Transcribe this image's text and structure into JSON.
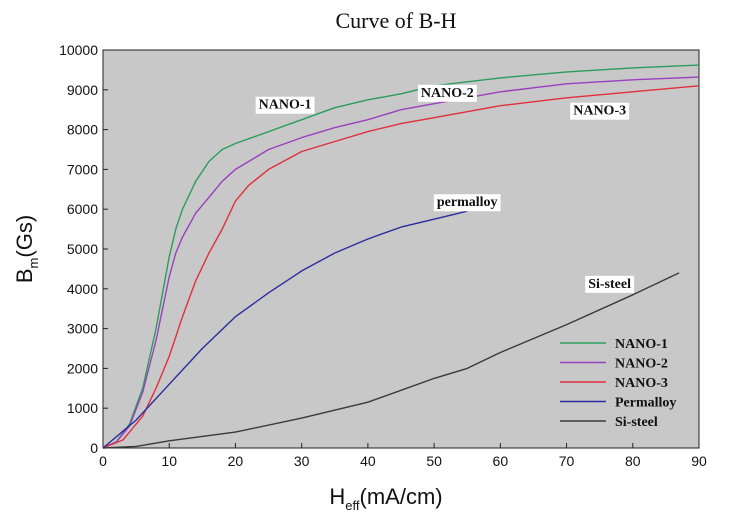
{
  "chart_data": {
    "type": "line",
    "title": "Curve of B-H",
    "xlabel": {
      "main": "H",
      "sub": "eff",
      "rest": "(mA/cm)"
    },
    "ylabel": {
      "main": "B",
      "sub": "m",
      "rest": "(Gs)"
    },
    "xlim": [
      0,
      90
    ],
    "ylim": [
      0,
      10000
    ],
    "xticks": [
      0,
      10,
      20,
      30,
      40,
      50,
      60,
      70,
      80,
      90
    ],
    "yticks": [
      0,
      1000,
      2000,
      3000,
      4000,
      5000,
      6000,
      7000,
      8000,
      9000,
      10000
    ],
    "plot_background": "#c8c8c8",
    "legend_position": "bottom-right",
    "series": [
      {
        "name": "NANO-1",
        "color": "#2a9d5c",
        "points": [
          [
            0,
            0
          ],
          [
            2,
            150
          ],
          [
            4,
            600
          ],
          [
            6,
            1500
          ],
          [
            8,
            3000
          ],
          [
            10,
            4800
          ],
          [
            11,
            5500
          ],
          [
            12,
            6000
          ],
          [
            14,
            6700
          ],
          [
            16,
            7200
          ],
          [
            18,
            7500
          ],
          [
            20,
            7650
          ],
          [
            25,
            7950
          ],
          [
            30,
            8250
          ],
          [
            35,
            8550
          ],
          [
            40,
            8750
          ],
          [
            45,
            8900
          ],
          [
            50,
            9100
          ],
          [
            55,
            9200
          ],
          [
            60,
            9300
          ],
          [
            70,
            9450
          ],
          [
            80,
            9550
          ],
          [
            90,
            9620
          ]
        ]
      },
      {
        "name": "NANO-2",
        "color": "#9b3fbf",
        "points": [
          [
            0,
            0
          ],
          [
            2,
            150
          ],
          [
            4,
            550
          ],
          [
            6,
            1400
          ],
          [
            8,
            2700
          ],
          [
            10,
            4300
          ],
          [
            11,
            4900
          ],
          [
            12,
            5300
          ],
          [
            14,
            5900
          ],
          [
            16,
            6300
          ],
          [
            18,
            6700
          ],
          [
            20,
            7000
          ],
          [
            25,
            7500
          ],
          [
            30,
            7800
          ],
          [
            35,
            8050
          ],
          [
            40,
            8250
          ],
          [
            45,
            8500
          ],
          [
            50,
            8650
          ],
          [
            55,
            8800
          ],
          [
            60,
            8950
          ],
          [
            70,
            9150
          ],
          [
            80,
            9250
          ],
          [
            90,
            9320
          ]
        ]
      },
      {
        "name": "NANO-3",
        "color": "#e0303a",
        "points": [
          [
            0,
            0
          ],
          [
            3,
            200
          ],
          [
            6,
            800
          ],
          [
            8,
            1500
          ],
          [
            10,
            2300
          ],
          [
            12,
            3300
          ],
          [
            14,
            4200
          ],
          [
            16,
            4900
          ],
          [
            18,
            5500
          ],
          [
            20,
            6200
          ],
          [
            22,
            6600
          ],
          [
            25,
            7000
          ],
          [
            30,
            7450
          ],
          [
            35,
            7700
          ],
          [
            40,
            7950
          ],
          [
            45,
            8150
          ],
          [
            50,
            8300
          ],
          [
            55,
            8450
          ],
          [
            60,
            8600
          ],
          [
            70,
            8800
          ],
          [
            80,
            8950
          ],
          [
            90,
            9100
          ]
        ]
      },
      {
        "name": "Permalloy",
        "color": "#2c2c9e",
        "points": [
          [
            0,
            0
          ],
          [
            5,
            700
          ],
          [
            10,
            1600
          ],
          [
            15,
            2500
          ],
          [
            20,
            3300
          ],
          [
            25,
            3900
          ],
          [
            30,
            4450
          ],
          [
            35,
            4900
          ],
          [
            40,
            5250
          ],
          [
            45,
            5550
          ],
          [
            50,
            5750
          ],
          [
            55,
            5950
          ]
        ]
      },
      {
        "name": "Si-steel",
        "color": "#3a3a3a",
        "points": [
          [
            0,
            0
          ],
          [
            5,
            40
          ],
          [
            10,
            180
          ],
          [
            20,
            400
          ],
          [
            30,
            750
          ],
          [
            40,
            1150
          ],
          [
            50,
            1750
          ],
          [
            55,
            2000
          ],
          [
            60,
            2400
          ],
          [
            70,
            3100
          ],
          [
            80,
            3850
          ],
          [
            87,
            4400
          ]
        ]
      }
    ],
    "annotations": [
      {
        "text": "NANO-1",
        "x": 27.5,
        "y": 8650
      },
      {
        "text": "NANO-2",
        "x": 52,
        "y": 8950
      },
      {
        "text": "NANO-3",
        "x": 75,
        "y": 8500
      },
      {
        "text": "permalloy",
        "x": 55,
        "y": 6200
      },
      {
        "text": "Si-steel",
        "x": 76.5,
        "y": 4150
      }
    ]
  }
}
